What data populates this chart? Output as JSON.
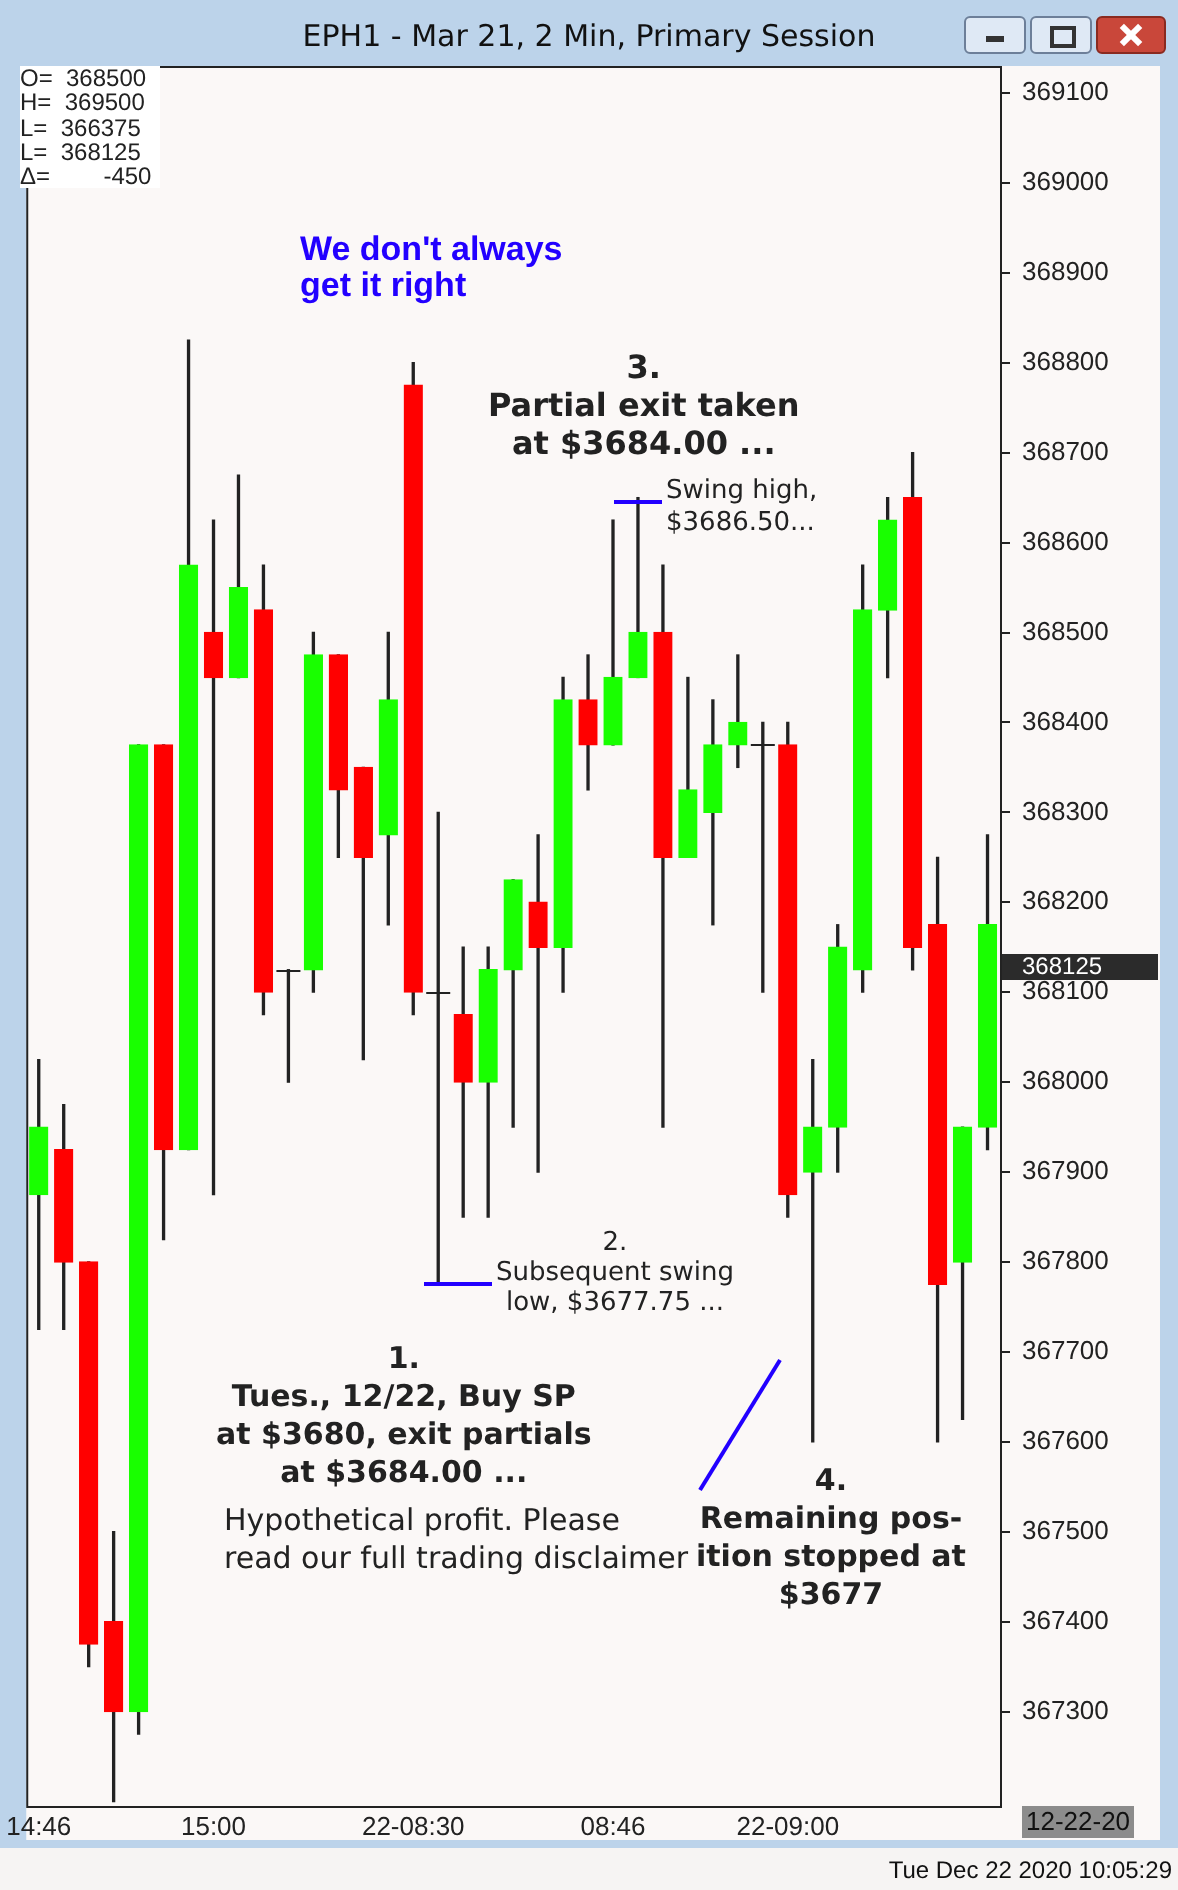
{
  "chart_data": {
    "type": "candlestick",
    "title": "EPH1 - Mar 21, 2 Min, Primary Session",
    "categories": [
      "14:46",
      null,
      null,
      null,
      null,
      null,
      null,
      "15:00",
      null,
      null,
      null,
      null,
      null,
      null,
      null,
      "22-08:30",
      null,
      null,
      null,
      null,
      null,
      null,
      null,
      "08:46",
      null,
      null,
      null,
      null,
      null,
      null,
      "22-09:00",
      null,
      null,
      null,
      null,
      null,
      null,
      null,
      null
    ],
    "ohlc": [
      [
        367875,
        368025,
        367725,
        367950
      ],
      [
        367925,
        367975,
        367725,
        367800
      ],
      [
        367800,
        367800,
        367350,
        367375
      ],
      [
        367400,
        367500,
        367200,
        367300
      ],
      [
        367300,
        368375,
        367275,
        368375
      ],
      [
        368375,
        368375,
        367825,
        367925
      ],
      [
        367925,
        368825,
        367925,
        368575
      ],
      [
        368500,
        368625,
        367875,
        368450
      ],
      [
        368450,
        368675,
        368450,
        368550
      ],
      [
        368525,
        368575,
        368075,
        368100
      ],
      [
        368125,
        368125,
        368000,
        368125
      ],
      [
        368125,
        368500,
        368100,
        368475
      ],
      [
        368475,
        368475,
        368250,
        368325
      ],
      [
        368350,
        368350,
        368025,
        368250
      ],
      [
        368275,
        368500,
        368175,
        368425
      ],
      [
        368775,
        368800,
        368075,
        368100
      ],
      [
        368100,
        368300,
        367775,
        368100
      ],
      [
        368075,
        368150,
        367850,
        368000
      ],
      [
        368000,
        368150,
        367850,
        368125
      ],
      [
        368125,
        368225,
        367950,
        368225
      ],
      [
        368200,
        368275,
        367900,
        368150
      ],
      [
        368150,
        368450,
        368100,
        368425
      ],
      [
        368425,
        368475,
        368325,
        368375
      ],
      [
        368375,
        368625,
        368375,
        368450
      ],
      [
        368450,
        368650,
        368450,
        368500
      ],
      [
        368500,
        368575,
        367950,
        368250
      ],
      [
        368250,
        368450,
        368250,
        368325
      ],
      [
        368300,
        368425,
        368175,
        368375
      ],
      [
        368375,
        368475,
        368350,
        368400
      ],
      [
        368375,
        368400,
        368100,
        368375
      ],
      [
        368375,
        368400,
        367850,
        367875
      ],
      [
        367900,
        368025,
        367600,
        367950
      ],
      [
        367950,
        368175,
        367900,
        368150
      ],
      [
        368125,
        368575,
        368100,
        368525
      ],
      [
        368525,
        368650,
        368450,
        368625
      ],
      [
        368650,
        368700,
        368125,
        368150
      ],
      [
        368175,
        368250,
        367600,
        367775
      ],
      [
        367800,
        367950,
        367625,
        367950
      ],
      [
        367950,
        368275,
        367925,
        368175
      ]
    ],
    "colors": [
      "#19ff00",
      "#ff0000",
      "#ff0000",
      "#ff0000",
      "#19ff00",
      "#ff0000",
      "#19ff00",
      "#ff0000",
      "#19ff00",
      "#ff0000",
      "#19ff00",
      "#19ff00",
      "#ff0000",
      "#ff0000",
      "#19ff00",
      "#ff0000",
      "#19ff00",
      "#ff0000",
      "#19ff00",
      "#19ff00",
      "#ff0000",
      "#19ff00",
      "#ff0000",
      "#19ff00",
      "#19ff00",
      "#ff0000",
      "#19ff00",
      "#19ff00",
      "#19ff00",
      "#19ff00",
      "#ff0000",
      "#19ff00",
      "#19ff00",
      "#19ff00",
      "#19ff00",
      "#ff0000",
      "#ff0000",
      "#19ff00",
      "#19ff00"
    ],
    "ylim": [
      367195,
      369130
    ],
    "yticks": [
      367300,
      367400,
      367500,
      367600,
      367700,
      367800,
      367900,
      368000,
      368100,
      368200,
      368300,
      368400,
      368500,
      368600,
      368700,
      368800,
      368900,
      369000,
      369100
    ],
    "grid": false,
    "legend": false,
    "annotations": [
      "We don't always\nget it right",
      "3.\nPartial exit taken\nat $3684.00 ...",
      "Swing high,\n$3686.50...",
      "2.\nSubsequent swing\nlow, $3677.75 ...",
      "1.\nTues., 12/22, Buy SP\nat $3680, exit partials\nat $3684.00 ...",
      "Hypothetical profit. Please\nread our full trading disclaimer",
      "4.\nRemaining pos-\nition stopped at\n$3677",
      "O=  368500\nH=  369500\nL=  366375\nL=  368125\nΔ=        -450",
      "12-22-20",
      "Tue Dec 22 2020 10:05:29",
      "368125"
    ]
  }
}
